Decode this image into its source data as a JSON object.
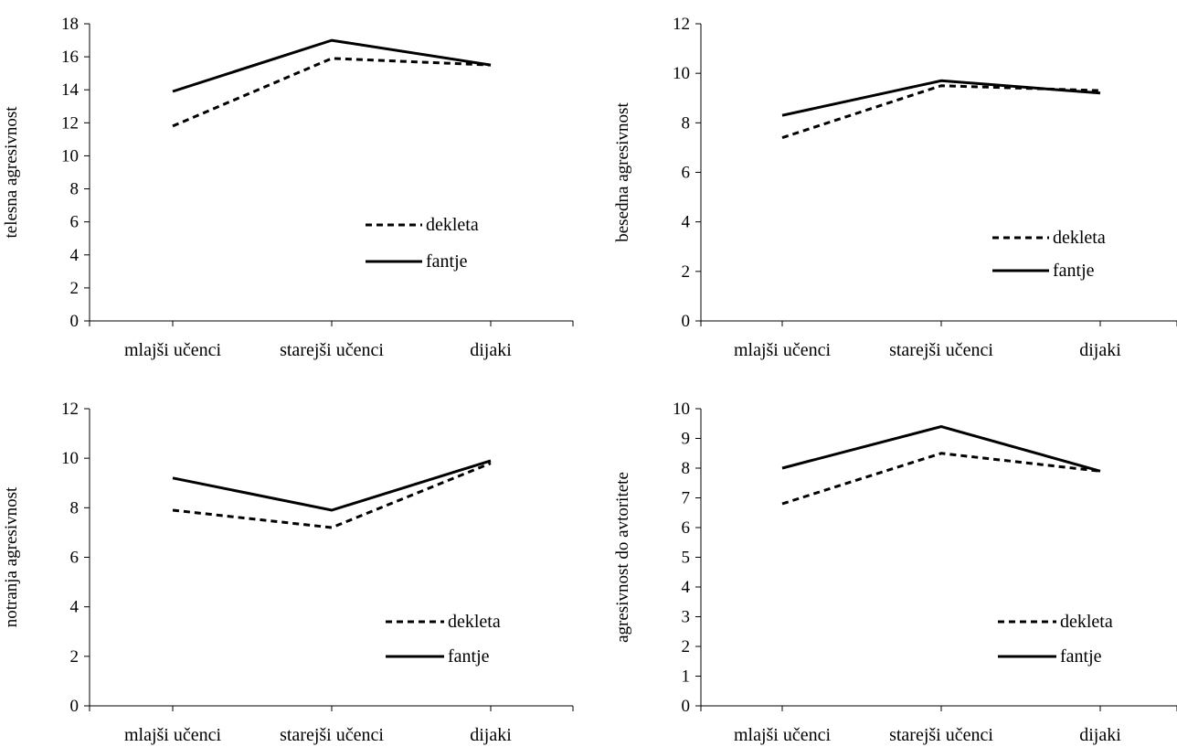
{
  "chart_data": [
    {
      "type": "line",
      "title": "",
      "xlabel": "",
      "ylabel": "telesna agresivnost",
      "categories": [
        "mlajši učenci",
        "starejši učenci",
        "dijaki"
      ],
      "ylim": [
        0,
        18
      ],
      "ytick_step": 2,
      "yticks": [
        "0",
        "2",
        "4",
        "6",
        "8",
        "10",
        "12",
        "14",
        "16",
        "18"
      ],
      "legend": "inside-lower-right",
      "grid": false,
      "series": [
        {
          "name": "dekleta",
          "style": "dashed",
          "values": [
            11.8,
            15.9,
            15.5
          ]
        },
        {
          "name": "fantje",
          "style": "solid",
          "values": [
            13.9,
            17.0,
            15.5
          ]
        }
      ]
    },
    {
      "type": "line",
      "title": "",
      "xlabel": "",
      "ylabel": "besedna agresivnost",
      "categories": [
        "mlajši učenci",
        "starejši učenci",
        "dijaki"
      ],
      "ylim": [
        0,
        12
      ],
      "ytick_step": 2,
      "yticks": [
        "0",
        "2",
        "4",
        "6",
        "8",
        "10",
        "12"
      ],
      "legend": "inside-lower-right",
      "grid": false,
      "series": [
        {
          "name": "dekleta",
          "style": "dashed",
          "values": [
            7.4,
            9.5,
            9.3
          ]
        },
        {
          "name": "fantje",
          "style": "solid",
          "values": [
            8.3,
            9.7,
            9.2
          ]
        }
      ]
    },
    {
      "type": "line",
      "title": "",
      "xlabel": "",
      "ylabel": "notranja agresivnost",
      "categories": [
        "mlajši učenci",
        "starejši učenci",
        "dijaki"
      ],
      "ylim": [
        0,
        12
      ],
      "ytick_step": 2,
      "yticks": [
        "0",
        "2",
        "4",
        "6",
        "8",
        "10",
        "12"
      ],
      "legend": "inside-lower-right",
      "grid": false,
      "series": [
        {
          "name": "dekleta",
          "style": "dashed",
          "values": [
            7.9,
            7.2,
            9.8
          ]
        },
        {
          "name": "fantje",
          "style": "solid",
          "values": [
            9.2,
            7.9,
            9.9
          ]
        }
      ]
    },
    {
      "type": "line",
      "title": "",
      "xlabel": "",
      "ylabel": "agresivnost do avtoritete",
      "categories": [
        "mlajši učenci",
        "starejši učenci",
        "dijaki"
      ],
      "ylim": [
        0,
        10
      ],
      "ytick_step": 1,
      "yticks": [
        "0",
        "1",
        "2",
        "3",
        "4",
        "5",
        "6",
        "7",
        "8",
        "9",
        "10"
      ],
      "legend": "inside-lower-right",
      "grid": false,
      "series": [
        {
          "name": "dekleta",
          "style": "dashed",
          "values": [
            6.8,
            8.5,
            7.9
          ]
        },
        {
          "name": "fantje",
          "style": "solid",
          "values": [
            8.0,
            9.4,
            7.9
          ]
        }
      ]
    }
  ]
}
